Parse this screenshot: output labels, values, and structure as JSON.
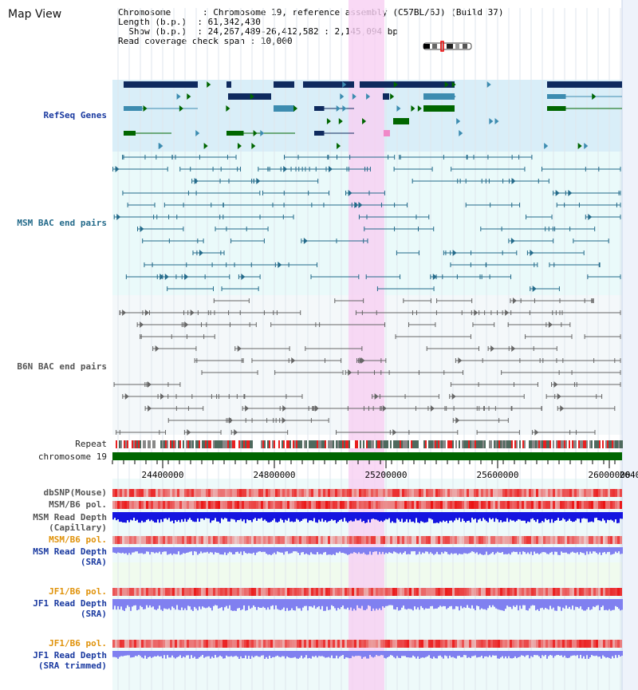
{
  "view_title": "Map View",
  "info": {
    "chromosome_key": "Chromosome     ",
    "chromosome_value": "Chromosome 19, reference assembly (C57BL/6J) (Build 37)",
    "length_key": "Length (b.p.) ",
    "length_value": "61,342,430",
    "show_key": "  Show (b.p.) ",
    "show_value": "24,267,489-26,412,582 : 2,145,094 bp",
    "coverage_key": "Read coverage check span",
    "coverage_value": "10,000"
  },
  "tracks": {
    "refseq": "RefSeq Genes",
    "msm_bac": "MSM BAC end pairs",
    "b6n_bac": "B6N BAC end pairs",
    "repeat": "Repeat",
    "chromosome": "chromosome 19",
    "dbsnp": "dbSNP(Mouse)",
    "msm_b6_pol": "MSM/B6 pol.",
    "msm_depth_cap_1": "MSM Read Depth",
    "msm_depth_cap_2": "(Capillary)",
    "msm_b6_pol_2": "MSM/B6 pol.",
    "msm_depth_sra_1": "MSM Read Depth",
    "msm_depth_sra_2": "(SRA)",
    "jf1_b6_pol": "JF1/B6 pol.",
    "jf1_depth_sra_1": "JF1 Read Depth",
    "jf1_depth_sra_2": "(SRA)",
    "jf1_b6_pol_2": "JF1/B6 pol.",
    "jf1_depth_trim_1": "JF1 Read Depth",
    "jf1_depth_trim_2": "(SRA trimmed)"
  },
  "axis_ticks": [
    "24400000",
    "24800000",
    "25200000",
    "25600000",
    "26000000",
    "2640"
  ],
  "colors": {
    "highlight": "#f7d0f3",
    "refseq_bg": "#d9eef8",
    "bac_bg": "#eafafa",
    "b6n_bg": "#f4f8fa",
    "chromosome": "#006600",
    "gene_dark": "#0f2a5e",
    "gene_teal": "#3d8cb0",
    "gene_green": "#006600",
    "depth_blue": "#1515e0",
    "depth_light": "#8080f0"
  }
}
